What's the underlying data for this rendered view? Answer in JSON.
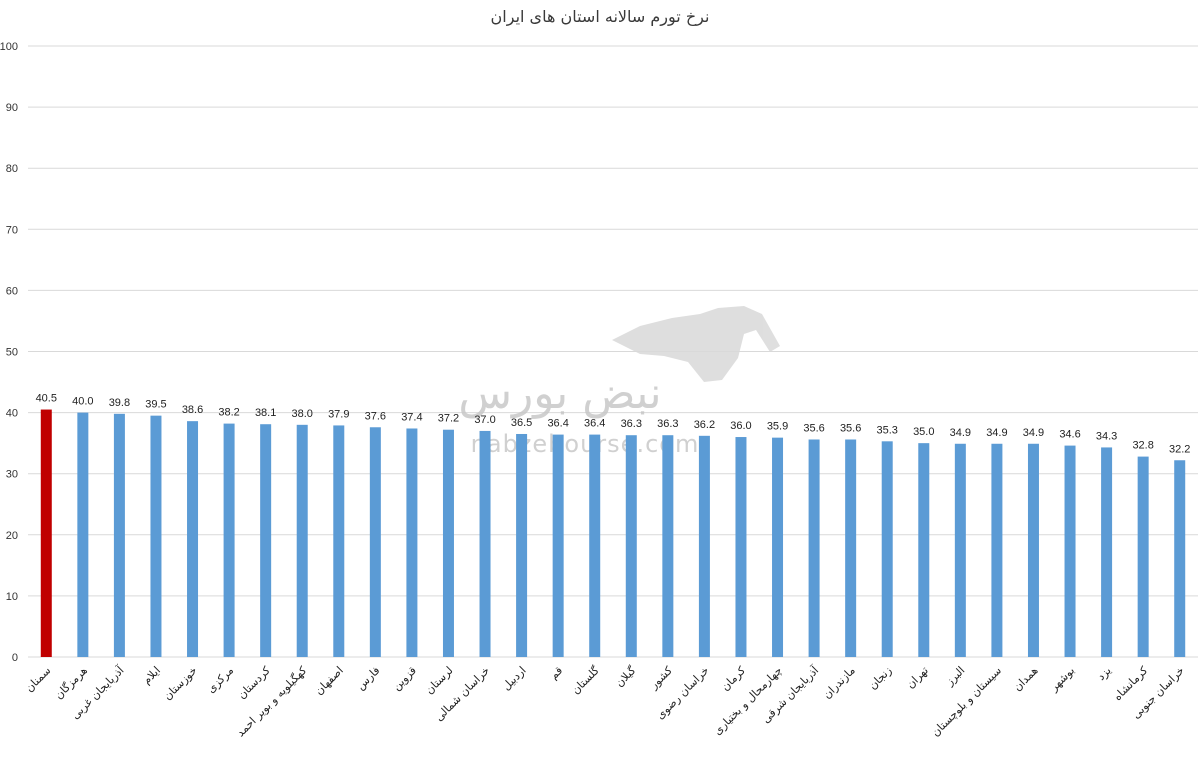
{
  "chart_data": {
    "type": "bar",
    "title": "نرخ تورم سالانه استان های ایران",
    "xlabel": "",
    "ylabel": "",
    "ylim": [
      0,
      100
    ],
    "yticks": [
      0,
      10,
      20,
      30,
      40,
      50,
      60,
      70,
      80,
      90,
      100
    ],
    "grid": true,
    "categories": [
      "سمنان",
      "هرمزگان",
      "آذربایجان غربی",
      "ایلام",
      "خوزستان",
      "مرکزی",
      "کردستان",
      "کهگیلویه و بویر احمد",
      "اصفهان",
      "فارس",
      "قزوین",
      "لرستان",
      "خراسان شمالی",
      "اردبیل",
      "قم",
      "گلستان",
      "گیلان",
      "کشور",
      "خراسان رضوی",
      "کرمان",
      "چهارمحال و بختیاری",
      "آذربایجان شرقی",
      "مازندران",
      "زنجان",
      "تهران",
      "البرز",
      "سیستان و بلوچستان",
      "همدان",
      "بوشهر",
      "یزد",
      "کرمانشاه",
      "خراسان جنوبی"
    ],
    "values": [
      40.5,
      40.0,
      39.8,
      39.5,
      38.6,
      38.2,
      38.1,
      38.0,
      37.9,
      37.6,
      37.4,
      37.2,
      37.0,
      36.5,
      36.4,
      36.4,
      36.3,
      36.3,
      36.2,
      36.0,
      35.9,
      35.6,
      35.6,
      35.3,
      35.0,
      34.9,
      34.9,
      34.9,
      34.6,
      34.3,
      32.8,
      32.2
    ],
    "value_labels": [
      "40.5",
      "40.0",
      "39.8",
      "39.5",
      "38.6",
      "38.2",
      "38.1",
      "38.0",
      "37.9",
      "37.6",
      "37.4",
      "37.2",
      "37.0",
      "36.5",
      "36.4",
      "36.4",
      "36.3",
      "36.3",
      "36.2",
      "36.0",
      "35.9",
      "35.6",
      "35.6",
      "35.3",
      "35.0",
      "34.9",
      "34.9",
      "34.9",
      "34.6",
      "34.3",
      "32.8",
      "32.2"
    ],
    "highlight_index": 0,
    "colors": {
      "bar": "#5b9bd5",
      "highlight": "#c00000",
      "grid": "#d9d9d9"
    }
  },
  "watermark": {
    "logo_text": "نبض بورس",
    "url": "nabzebourse.com"
  }
}
